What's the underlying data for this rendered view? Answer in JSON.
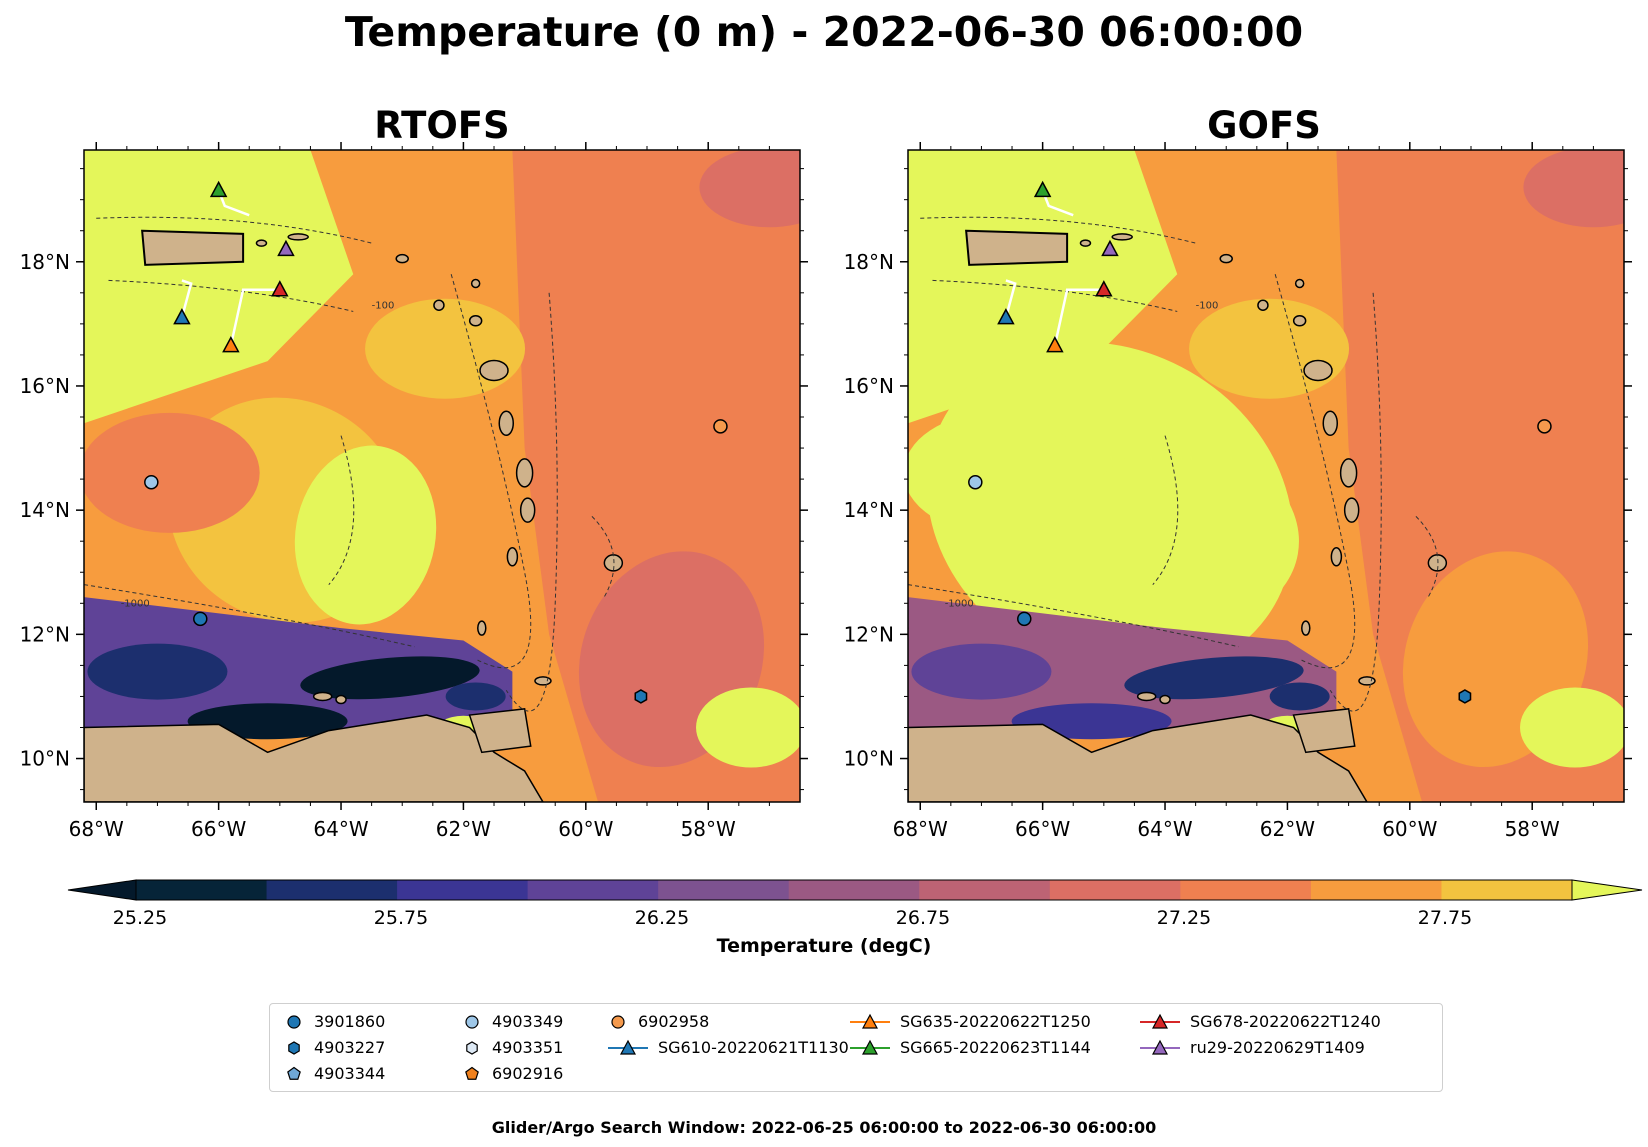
{
  "title": "Temperature (0 m) - 2022-06-30 06:00:00",
  "panels": [
    {
      "title": "RTOFS",
      "variant": "rtofs"
    },
    {
      "title": "GOFS",
      "variant": "gofs"
    }
  ],
  "axes": {
    "x_ticks": [
      "68°W",
      "66°W",
      "64°W",
      "62°W",
      "60°W",
      "58°W"
    ],
    "y_ticks": [
      "18°N",
      "16°N",
      "14°N",
      "12°N",
      "10°N"
    ],
    "lon_range": [
      -68.2,
      -56.5
    ],
    "lat_range": [
      9.3,
      19.8
    ]
  },
  "colorbar": {
    "label": "Temperature (degC)",
    "tick_labels": [
      "25.25",
      "25.75",
      "26.25",
      "26.75",
      "27.25",
      "27.75"
    ],
    "colors": [
      "#062438",
      "#1c2f6e",
      "#3b3594",
      "#5f4397",
      "#7d5290",
      "#9b5983",
      "#bd6374",
      "#dc6f64",
      "#ef8050",
      "#f79c3e",
      "#f3c33f"
    ],
    "under_color": "#04192b",
    "over_color": "#e4f65a"
  },
  "contours": {
    "label": "-1000",
    "label_alt": "-100"
  },
  "markers": {
    "argo": [
      {
        "id": "3901860",
        "lon": -66.3,
        "lat": 12.25,
        "shape": "circle",
        "color": "#1f77b4"
      },
      {
        "id": "4903349",
        "lon": -67.1,
        "lat": 14.45,
        "shape": "circle",
        "color": "#9ec7e8"
      },
      {
        "id": "6902958",
        "lon": -57.8,
        "lat": 15.35,
        "shape": "circle",
        "color": "#f59a4d"
      },
      {
        "id": "4903227",
        "lon": -59.1,
        "lat": 11.0,
        "shape": "hexagon",
        "color": "#1f77b4"
      }
    ],
    "gliders": [
      {
        "id": "SG665-20220623T1144",
        "lon": -66.0,
        "lat": 19.15,
        "color": "#2ca02c"
      },
      {
        "id": "ru29-20220629T1409",
        "lon": -64.9,
        "lat": 18.2,
        "color": "#9467bd"
      },
      {
        "id": "SG678-20220622T1240",
        "lon": -65.0,
        "lat": 17.55,
        "color": "#d62728"
      },
      {
        "id": "SG610-20220621T1130",
        "lon": -66.6,
        "lat": 17.1,
        "color": "#1f77b4"
      },
      {
        "id": "SG635-20220622T1250",
        "lon": -65.8,
        "lat": 16.65,
        "color": "#ff7f0e"
      }
    ]
  },
  "legend": [
    {
      "label": "3901860",
      "shape": "circle",
      "color": "#1f77b4"
    },
    {
      "label": "4903227",
      "shape": "hexagon",
      "color": "#1f77b4"
    },
    {
      "label": "4903344",
      "shape": "pentagon",
      "color": "#6fa8d6"
    },
    {
      "label": "4903349",
      "shape": "circle",
      "color": "#9ec7e8"
    },
    {
      "label": "4903351",
      "shape": "hexagon",
      "color": "#dde9f5"
    },
    {
      "label": "6902916",
      "shape": "pentagon",
      "color": "#f0811e"
    },
    {
      "label": "6902958",
      "shape": "circle",
      "color": "#f59a4d"
    },
    {
      "label": "SG610-20220621T1130",
      "shape": "triangle-line",
      "color": "#1f77b4"
    },
    {
      "label": "SG635-20220622T1250",
      "shape": "triangle-line",
      "color": "#ff7f0e"
    },
    {
      "label": "SG665-20220623T1144",
      "shape": "triangle-line",
      "color": "#2ca02c"
    },
    {
      "label": "SG678-20220622T1240",
      "shape": "triangle-line",
      "color": "#d62728"
    },
    {
      "label": "ru29-20220629T1409",
      "shape": "triangle-line",
      "color": "#9467bd"
    }
  ],
  "footer": "Glider/Argo Search Window: 2022-06-25 06:00:00 to 2022-06-30 06:00:00"
}
